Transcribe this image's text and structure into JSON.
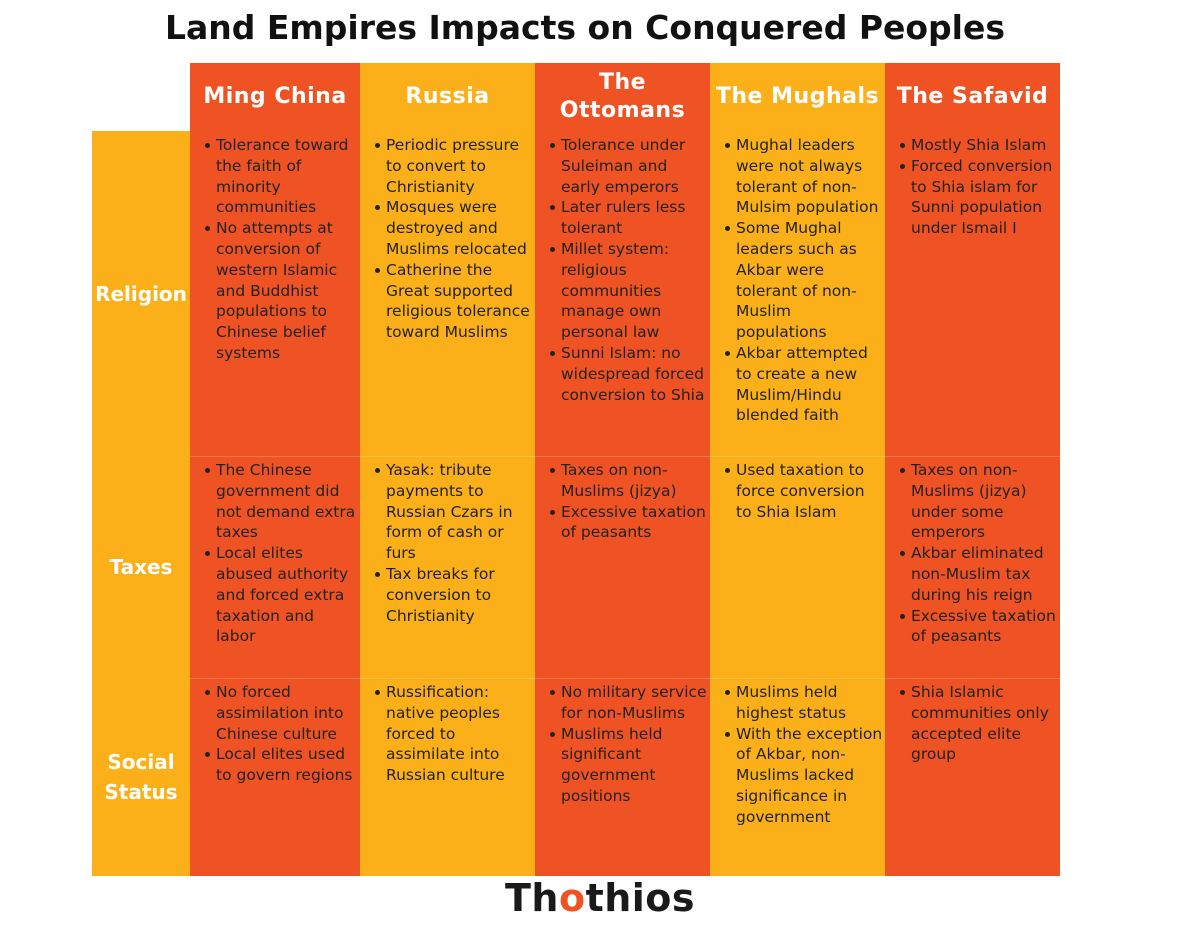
{
  "title": "Land Empires Impacts on Conquered Peoples",
  "colors": {
    "orange": "#ef5323",
    "yellow": "#fbb01a",
    "header_text": "#ffffff",
    "body_text": "#222222"
  },
  "columns": [
    "Ming China",
    "Russia",
    "The Ottomans",
    "The Mughals",
    "The Safavid"
  ],
  "rows": [
    {
      "label": "Religion",
      "cells": [
        [
          "Tolerance toward the faith of minority communities",
          "No attempts at conversion of western Islamic and Buddhist populations to Chinese belief systems"
        ],
        [
          "Periodic pressure to convert to Christianity",
          "Mosques were destroyed and Muslims relocated",
          "Catherine the Great supported religious tolerance toward Muslims"
        ],
        [
          "Tolerance under Suleiman and early emperors",
          "Later rulers less tolerant",
          "Millet system: religious communities manage own personal law",
          "Sunni Islam: no widespread forced conversion to Shia"
        ],
        [
          "Mughal leaders were not always tolerant of non-Mulsim population",
          "Some Mughal leaders such as Akbar were tolerant of non-Muslim populations",
          "Akbar attempted to create a new Muslim/Hindu blended faith"
        ],
        [
          "Mostly Shia Islam",
          "Forced conversion to Shia islam for Sunni population under Ismail I"
        ]
      ]
    },
    {
      "label": "Taxes",
      "cells": [
        [
          "The Chinese government did not demand extra taxes",
          "Local elites abused authority and forced extra taxation and labor"
        ],
        [
          "Yasak: tribute payments to Russian Czars in form of cash or furs",
          "Tax breaks for conversion to Christianity"
        ],
        [
          "Taxes on non-Muslims (jizya)",
          "Excessive taxation of peasants"
        ],
        [
          "Used taxation to force conversion to Shia Islam"
        ],
        [
          "Taxes on non-Muslims (jizya) under some emperors",
          "Akbar eliminated non-Muslim tax during his reign",
          "Excessive taxation of peasants"
        ]
      ]
    },
    {
      "label": "Social Status",
      "cells": [
        [
          "No forced assimilation into Chinese culture",
          "Local elites used to govern regions"
        ],
        [
          "Russification: native peoples forced to assimilate into Russian culture"
        ],
        [
          "No military service for non-Muslims",
          "Muslims held significant government positions"
        ],
        [
          "Muslims held highest status",
          "With the exception of Akbar, non-Muslims lacked significance in government"
        ],
        [
          "Shia Islamic communities only accepted elite group"
        ]
      ]
    }
  ],
  "brand": {
    "prefix": "Th",
    "accent": "o",
    "suffix": "thios"
  }
}
